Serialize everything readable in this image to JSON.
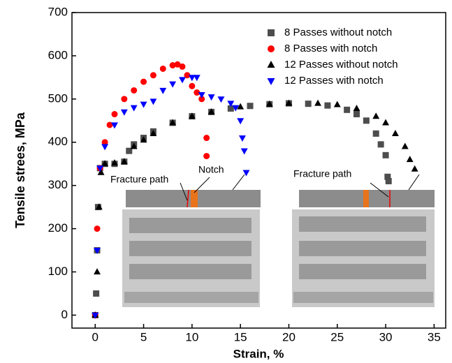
{
  "chart_data": {
    "type": "scatter",
    "x_label": "Strain, %",
    "y_label": "Tensile strees, MPa",
    "xlim": [
      -2.4,
      36.2
    ],
    "ylim": [
      -30,
      700
    ],
    "xticks": [
      0,
      5,
      10,
      15,
      20,
      25,
      30,
      35
    ],
    "yticks": [
      0,
      100,
      200,
      300,
      400,
      500,
      600,
      700
    ],
    "legend": "upper right",
    "annotations": [
      "Fracture path",
      "Notch",
      "Fracture path"
    ],
    "series": [
      {
        "name": "8 Passes  without notch",
        "color": "#4d4d4d",
        "marker": "square",
        "x": [
          0,
          0.1,
          0.2,
          0.3,
          0.5,
          1,
          2,
          3,
          3.5,
          4,
          5,
          6,
          8,
          10,
          12,
          14,
          16,
          18,
          20,
          22,
          24,
          26,
          27,
          28,
          29,
          29.5,
          30,
          30.2,
          30.3
        ],
        "values": [
          0,
          50,
          150,
          250,
          340,
          350,
          350,
          355,
          380,
          395,
          410,
          425,
          445,
          460,
          470,
          478,
          484,
          488,
          490,
          489,
          485,
          475,
          465,
          450,
          420,
          395,
          370,
          320,
          310
        ]
      },
      {
        "name": "8 Passes  with notch",
        "color": "#ff0000",
        "marker": "circle",
        "x": [
          0,
          0.2,
          0.5,
          1,
          1.5,
          2,
          3,
          4,
          5,
          6,
          7,
          8,
          8.5,
          9,
          9.5,
          10,
          10.5,
          11,
          11.5,
          11.5
        ],
        "values": [
          0,
          200,
          340,
          400,
          440,
          465,
          500,
          520,
          540,
          555,
          570,
          578,
          580,
          575,
          555,
          530,
          515,
          500,
          410,
          368
        ]
      },
      {
        "name": "12 Passes  without notch",
        "color": "#000000",
        "marker": "triangle-up",
        "x": [
          0,
          0.2,
          0.4,
          0.6,
          1,
          2,
          3,
          4,
          5,
          6,
          8,
          10,
          12,
          15,
          18,
          20,
          23,
          25,
          27,
          29,
          30,
          31,
          32,
          32.5,
          33
        ],
        "values": [
          0,
          100,
          250,
          330,
          350,
          352,
          355,
          390,
          405,
          420,
          445,
          460,
          470,
          482,
          488,
          490,
          490,
          487,
          478,
          460,
          445,
          420,
          390,
          360,
          338
        ]
      },
      {
        "name": "12 Passes  with notch",
        "color": "#0000ff",
        "marker": "triangle-down",
        "x": [
          0,
          0.2,
          0.5,
          1,
          2,
          3,
          4,
          5,
          6,
          7,
          8,
          9,
          10,
          10.5,
          11,
          12,
          13,
          14,
          14.5,
          15,
          15.2,
          15.4,
          15.6
        ],
        "values": [
          0,
          150,
          340,
          390,
          440,
          470,
          480,
          488,
          495,
          520,
          535,
          545,
          550,
          550,
          510,
          505,
          500,
          490,
          480,
          450,
          410,
          380,
          330
        ]
      }
    ]
  }
}
